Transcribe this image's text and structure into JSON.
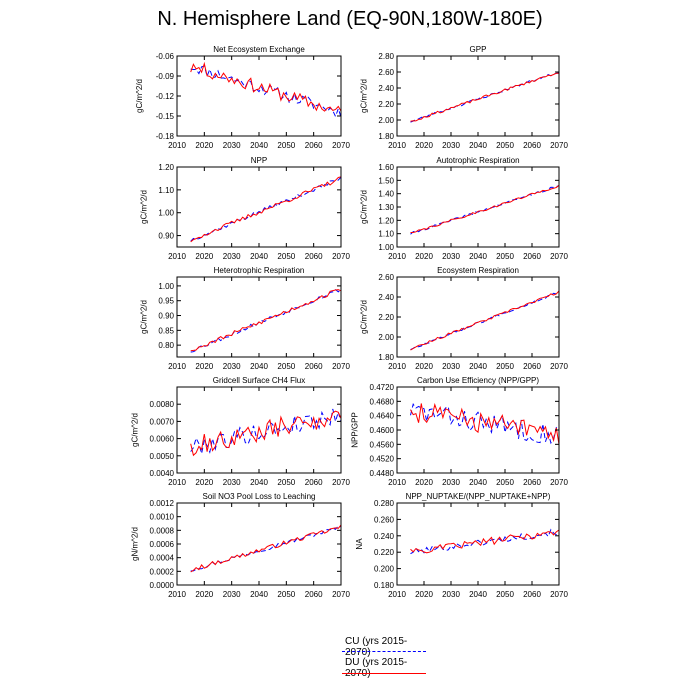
{
  "page": {
    "title": "N. Hemisphere Land (EQ-90N,180W-180E)"
  },
  "legend": [
    {
      "label": "CU (yrs 2015-2070)",
      "color": "#0000ff",
      "style": "dashed"
    },
    {
      "label": "DU (yrs 2015-2070)",
      "color": "#ff0000",
      "style": "solid"
    }
  ],
  "chart_data": [
    {
      "type": "line",
      "title": "Net Ecosystem Exchange",
      "ylabel": "gC/m^2/d",
      "xlim": [
        2010,
        2070
      ],
      "ylim": [
        -0.18,
        -0.06
      ],
      "xticks": [
        2010,
        2020,
        2030,
        2040,
        2050,
        2060,
        2070
      ],
      "xtick_labels": [
        "2010",
        "2020",
        "2030",
        "2040",
        "2050",
        "2060",
        "2070"
      ],
      "yticks": [
        -0.18,
        -0.15,
        -0.12,
        -0.09,
        -0.06
      ],
      "ytick_labels": [
        "-0.18",
        "-0.15",
        "-0.12",
        "-0.09",
        "-0.06"
      ],
      "trend": [
        -0.075,
        -0.145
      ],
      "noise": 0.009,
      "seed": 11,
      "series": [
        {
          "name": "CU",
          "color": "#0000ff",
          "style": "dashed",
          "values": []
        },
        {
          "name": "DU",
          "color": "#ff0000",
          "style": "solid",
          "values": []
        }
      ]
    },
    {
      "type": "line",
      "title": "GPP",
      "ylabel": "gC/m^2/d",
      "xlim": [
        2010,
        2070
      ],
      "ylim": [
        1.8,
        2.8
      ],
      "xticks": [
        2010,
        2020,
        2030,
        2040,
        2050,
        2060,
        2070
      ],
      "xtick_labels": [
        "2010",
        "2020",
        "2030",
        "2040",
        "2050",
        "2060",
        "2070"
      ],
      "yticks": [
        1.8,
        2.0,
        2.2,
        2.4,
        2.6,
        2.8
      ],
      "ytick_labels": [
        "1.80",
        "2.00",
        "2.20",
        "2.40",
        "2.60",
        "2.80"
      ],
      "trend": [
        1.98,
        2.6
      ],
      "noise": 0.015,
      "seed": 23,
      "series": [
        {
          "name": "CU",
          "color": "#0000ff",
          "style": "dashed",
          "values": []
        },
        {
          "name": "DU",
          "color": "#ff0000",
          "style": "solid",
          "values": []
        }
      ]
    },
    {
      "type": "line",
      "title": "NPP",
      "ylabel": "gC/m^2/d",
      "xlim": [
        2010,
        2070
      ],
      "ylim": [
        0.85,
        1.2
      ],
      "xticks": [
        2010,
        2020,
        2030,
        2040,
        2050,
        2060,
        2070
      ],
      "xtick_labels": [
        "2010",
        "2020",
        "2030",
        "2040",
        "2050",
        "2060",
        "2070"
      ],
      "yticks": [
        0.9,
        1.0,
        1.1,
        1.2
      ],
      "ytick_labels": [
        "0.90",
        "1.00",
        "1.10",
        "1.20"
      ],
      "trend": [
        0.88,
        1.15
      ],
      "noise": 0.009,
      "seed": 37,
      "series": [
        {
          "name": "CU",
          "color": "#0000ff",
          "style": "dashed",
          "values": []
        },
        {
          "name": "DU",
          "color": "#ff0000",
          "style": "solid",
          "values": []
        }
      ]
    },
    {
      "type": "line",
      "title": "Autotrophic Respiration",
      "ylabel": "gC/m^2/d",
      "xlim": [
        2010,
        2070
      ],
      "ylim": [
        1.0,
        1.6
      ],
      "xticks": [
        2010,
        2020,
        2030,
        2040,
        2050,
        2060,
        2070
      ],
      "xtick_labels": [
        "2010",
        "2020",
        "2030",
        "2040",
        "2050",
        "2060",
        "2070"
      ],
      "yticks": [
        1.0,
        1.1,
        1.2,
        1.3,
        1.4,
        1.5,
        1.6
      ],
      "ytick_labels": [
        "1.00",
        "1.10",
        "1.20",
        "1.30",
        "1.40",
        "1.50",
        "1.60"
      ],
      "trend": [
        1.1,
        1.46
      ],
      "noise": 0.008,
      "seed": 41,
      "series": [
        {
          "name": "CU",
          "color": "#0000ff",
          "style": "dashed",
          "values": []
        },
        {
          "name": "DU",
          "color": "#ff0000",
          "style": "solid",
          "values": []
        }
      ]
    },
    {
      "type": "line",
      "title": "Heterotrophic Respiration",
      "ylabel": "gC/m^2/d",
      "xlim": [
        2010,
        2070
      ],
      "ylim": [
        0.76,
        1.03
      ],
      "xticks": [
        2010,
        2020,
        2030,
        2040,
        2050,
        2060,
        2070
      ],
      "xtick_labels": [
        "2010",
        "2020",
        "2030",
        "2040",
        "2050",
        "2060",
        "2070"
      ],
      "yticks": [
        0.8,
        0.85,
        0.9,
        0.95,
        1.0
      ],
      "ytick_labels": [
        "0.80",
        "0.85",
        "0.90",
        "0.95",
        "1.00"
      ],
      "trend": [
        0.78,
        0.99
      ],
      "noise": 0.007,
      "seed": 53,
      "series": [
        {
          "name": "CU",
          "color": "#0000ff",
          "style": "dashed",
          "values": []
        },
        {
          "name": "DU",
          "color": "#ff0000",
          "style": "solid",
          "values": []
        }
      ]
    },
    {
      "type": "line",
      "title": "Ecosystem Respiration",
      "ylabel": "gC/m^2/d",
      "xlim": [
        2010,
        2070
      ],
      "ylim": [
        1.8,
        2.6
      ],
      "xticks": [
        2010,
        2020,
        2030,
        2040,
        2050,
        2060,
        2070
      ],
      "xtick_labels": [
        "2010",
        "2020",
        "2030",
        "2040",
        "2050",
        "2060",
        "2070"
      ],
      "yticks": [
        1.8,
        2.0,
        2.2,
        2.4,
        2.6
      ],
      "ytick_labels": [
        "1.80",
        "2.00",
        "2.20",
        "2.40",
        "2.60"
      ],
      "trend": [
        1.88,
        2.45
      ],
      "noise": 0.012,
      "seed": 67,
      "series": [
        {
          "name": "CU",
          "color": "#0000ff",
          "style": "dashed",
          "values": []
        },
        {
          "name": "DU",
          "color": "#ff0000",
          "style": "solid",
          "values": []
        }
      ]
    },
    {
      "type": "line",
      "title": "Gridcell Surface CH4 Flux",
      "ylabel": "gC/m^2/d",
      "xlim": [
        2010,
        2070
      ],
      "ylim": [
        0.004,
        0.009
      ],
      "xticks": [
        2010,
        2020,
        2030,
        2040,
        2050,
        2060,
        2070
      ],
      "xtick_labels": [
        "2010",
        "2020",
        "2030",
        "2040",
        "2050",
        "2060",
        "2070"
      ],
      "yticks": [
        0.004,
        0.005,
        0.006,
        0.007,
        0.008
      ],
      "ytick_labels": [
        "0.0040",
        "0.0050",
        "0.0060",
        "0.0070",
        "0.0080"
      ],
      "trend": [
        0.0055,
        0.0074
      ],
      "noise": 0.00055,
      "seed": 79,
      "series": [
        {
          "name": "CU",
          "color": "#0000ff",
          "style": "dashed",
          "values": []
        },
        {
          "name": "DU",
          "color": "#ff0000",
          "style": "solid",
          "values": []
        }
      ]
    },
    {
      "type": "line",
      "title": "Carbon Use Efficiency (NPP/GPP)",
      "ylabel": "NPP/GPP",
      "xlim": [
        2010,
        2070
      ],
      "ylim": [
        0.448,
        0.472
      ],
      "xticks": [
        2010,
        2020,
        2030,
        2040,
        2050,
        2060,
        2070
      ],
      "xtick_labels": [
        "2010",
        "2020",
        "2030",
        "2040",
        "2050",
        "2060",
        "2070"
      ],
      "yticks": [
        0.448,
        0.452,
        0.456,
        0.46,
        0.464,
        0.468,
        0.472
      ],
      "ytick_labels": [
        "0.4480",
        "0.4520",
        "0.4560",
        "0.4600",
        "0.4640",
        "0.4680",
        "0.4720"
      ],
      "trend": [
        0.4655,
        0.4585
      ],
      "noise": 0.003,
      "seed": 83,
      "series": [
        {
          "name": "CU",
          "color": "#0000ff",
          "style": "dashed",
          "values": []
        },
        {
          "name": "DU",
          "color": "#ff0000",
          "style": "solid",
          "values": []
        }
      ]
    },
    {
      "type": "line",
      "title": "Soil NO3 Pool Loss to Leaching",
      "ylabel": "gN/m^2/d",
      "xlim": [
        2010,
        2070
      ],
      "ylim": [
        0.0,
        0.0012
      ],
      "xticks": [
        2010,
        2020,
        2030,
        2040,
        2050,
        2060,
        2070
      ],
      "xtick_labels": [
        "2010",
        "2020",
        "2030",
        "2040",
        "2050",
        "2060",
        "2070"
      ],
      "yticks": [
        0.0,
        0.0002,
        0.0004,
        0.0006,
        0.0008,
        0.001,
        0.0012
      ],
      "ytick_labels": [
        "0.0000",
        "0.0002",
        "0.0004",
        "0.0006",
        "0.0008",
        "0.0010",
        "0.0012"
      ],
      "trend": [
        0.00022,
        0.00085
      ],
      "noise": 3e-05,
      "seed": 97,
      "series": [
        {
          "name": "CU",
          "color": "#0000ff",
          "style": "dashed",
          "values": []
        },
        {
          "name": "DU",
          "color": "#ff0000",
          "style": "solid",
          "values": []
        }
      ]
    },
    {
      "type": "line",
      "title": "NPP_NUPTAKE/(NPP_NUPTAKE+NPP)",
      "ylabel": "NA",
      "xlim": [
        2010,
        2070
      ],
      "ylim": [
        0.18,
        0.28
      ],
      "xticks": [
        2010,
        2020,
        2030,
        2040,
        2050,
        2060,
        2070
      ],
      "xtick_labels": [
        "2010",
        "2020",
        "2030",
        "2040",
        "2050",
        "2060",
        "2070"
      ],
      "yticks": [
        0.18,
        0.2,
        0.22,
        0.24,
        0.26,
        0.28
      ],
      "ytick_labels": [
        "0.180",
        "0.200",
        "0.220",
        "0.240",
        "0.260",
        "0.280"
      ],
      "trend": [
        0.22,
        0.245
      ],
      "noise": 0.004,
      "seed": 101,
      "series": [
        {
          "name": "CU",
          "color": "#0000ff",
          "style": "dashed",
          "values": []
        },
        {
          "name": "DU",
          "color": "#ff0000",
          "style": "solid",
          "values": []
        }
      ]
    }
  ]
}
